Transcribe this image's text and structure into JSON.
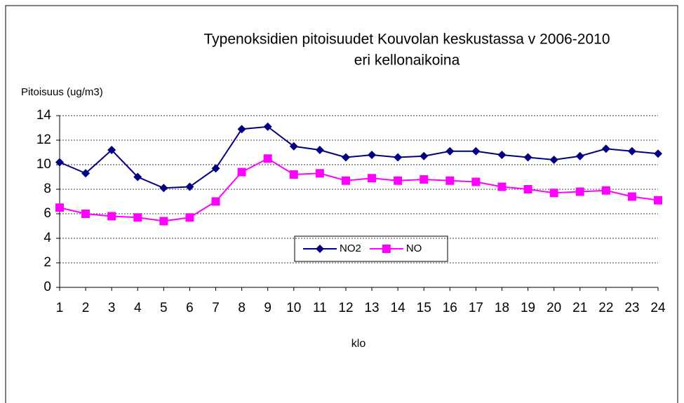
{
  "chart_data": {
    "type": "line",
    "title": [
      "Typenoksidien pitoisuudet Kouvolan keskustassa v 2006-2010",
      "eri kellonaikoina"
    ],
    "y_label": "Pitoisuus  (ug/m3)",
    "x_label": "klo",
    "categories": [
      1,
      2,
      3,
      4,
      5,
      6,
      7,
      8,
      9,
      10,
      11,
      12,
      13,
      14,
      15,
      16,
      17,
      18,
      19,
      20,
      21,
      22,
      23,
      24
    ],
    "series": [
      {
        "name": "NO2",
        "color": "#000080",
        "marker": "diamond",
        "values": [
          10.2,
          9.3,
          11.2,
          9.0,
          8.1,
          8.2,
          9.7,
          12.9,
          13.1,
          11.5,
          11.2,
          10.6,
          10.8,
          10.6,
          10.7,
          11.1,
          11.1,
          10.8,
          10.6,
          10.4,
          10.7,
          11.3,
          11.1,
          10.9
        ]
      },
      {
        "name": "NO",
        "color": "#ff00ff",
        "marker": "square",
        "values": [
          6.5,
          6.0,
          5.8,
          5.7,
          5.4,
          5.7,
          7.0,
          9.4,
          10.5,
          9.2,
          9.3,
          8.7,
          8.9,
          8.7,
          8.8,
          8.7,
          8.6,
          8.2,
          8.0,
          7.7,
          7.8,
          7.9,
          7.4,
          7.1
        ]
      }
    ],
    "ylim": [
      0,
      14
    ],
    "yticks": [
      0,
      2,
      4,
      6,
      8,
      10,
      12,
      14
    ],
    "grid": true,
    "legend": "bottom"
  }
}
